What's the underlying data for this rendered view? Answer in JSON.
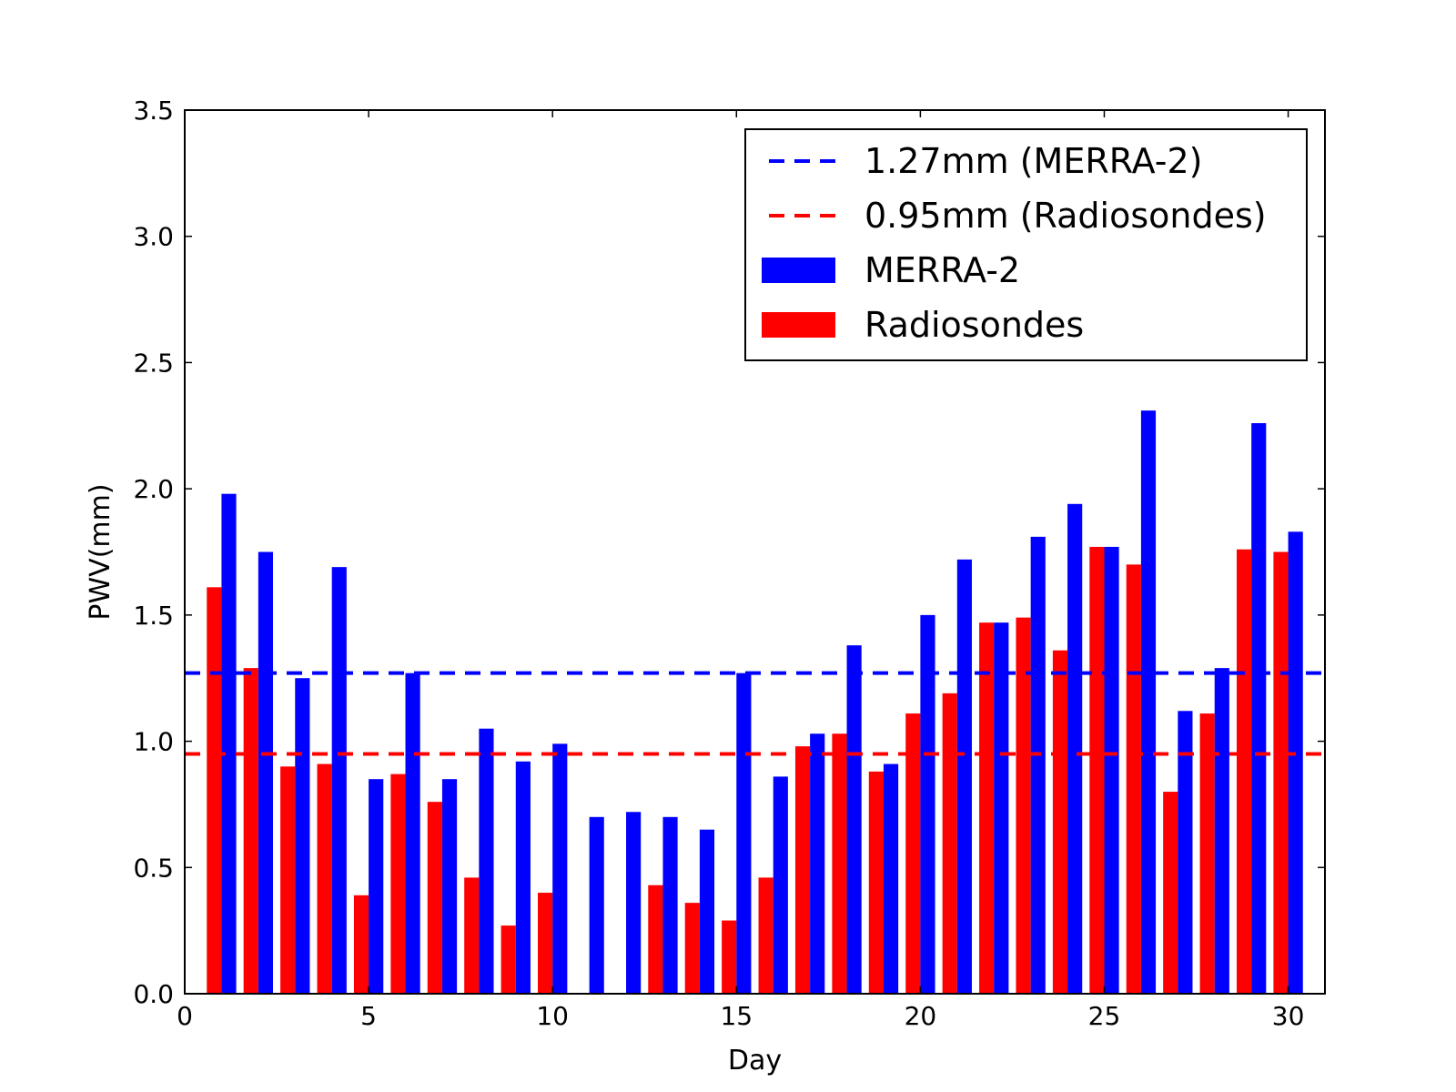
{
  "chart_data": {
    "type": "bar",
    "title": "",
    "xlabel": "Day",
    "ylabel": "PWV(mm)",
    "xlim": [
      0,
      31
    ],
    "ylim": [
      0,
      3.5
    ],
    "xticks": [
      0,
      5,
      10,
      15,
      20,
      25,
      30
    ],
    "xtick_labels": [
      "0",
      "5",
      "10",
      "15",
      "20",
      "25",
      "30"
    ],
    "yticks": [
      0.0,
      0.5,
      1.0,
      1.5,
      2.0,
      2.5,
      3.0,
      3.5
    ],
    "ytick_labels": [
      "0.0",
      "0.5",
      "1.0",
      "1.5",
      "2.0",
      "2.5",
      "3.0",
      "3.5"
    ],
    "grid": false,
    "legend_position": "top-right",
    "days": [
      1,
      2,
      3,
      4,
      5,
      6,
      7,
      8,
      9,
      10,
      11,
      12,
      13,
      14,
      15,
      16,
      17,
      18,
      19,
      20,
      21,
      22,
      23,
      24,
      25,
      26,
      27,
      28,
      29,
      30
    ],
    "series": [
      {
        "name": "Radiosondes",
        "color": "#ff0000",
        "values": [
          1.61,
          1.29,
          0.9,
          0.91,
          0.39,
          0.87,
          0.76,
          0.46,
          0.27,
          0.4,
          null,
          null,
          0.43,
          0.36,
          0.29,
          0.46,
          0.98,
          1.03,
          0.88,
          1.11,
          1.19,
          1.47,
          1.49,
          1.36,
          1.77,
          1.7,
          0.8,
          1.11,
          1.76,
          1.75
        ]
      },
      {
        "name": "MERRA-2",
        "color": "#0000ff",
        "values": [
          1.98,
          1.75,
          1.25,
          1.69,
          0.85,
          1.27,
          0.85,
          1.05,
          0.92,
          0.99,
          0.7,
          0.72,
          0.7,
          0.65,
          1.27,
          0.86,
          1.03,
          1.38,
          0.91,
          1.5,
          1.72,
          1.47,
          1.81,
          1.94,
          1.77,
          2.31,
          1.12,
          1.29,
          2.26,
          1.83
        ]
      }
    ],
    "reference_lines": [
      {
        "label": "1.27mm (MERRA-2)",
        "value": 1.27,
        "color": "#0000ff",
        "style": "dashed"
      },
      {
        "label": "0.95mm (Radiosondes)",
        "value": 0.95,
        "color": "#ff0000",
        "style": "dashed"
      }
    ],
    "legend": [
      {
        "label": "1.27mm (MERRA-2)",
        "kind": "line",
        "color": "#0000ff"
      },
      {
        "label": "0.95mm (Radiosondes)",
        "kind": "line",
        "color": "#ff0000"
      },
      {
        "label": "MERRA-2",
        "kind": "patch",
        "color": "#0000ff"
      },
      {
        "label": "Radiosondes",
        "kind": "patch",
        "color": "#ff0000"
      }
    ]
  }
}
